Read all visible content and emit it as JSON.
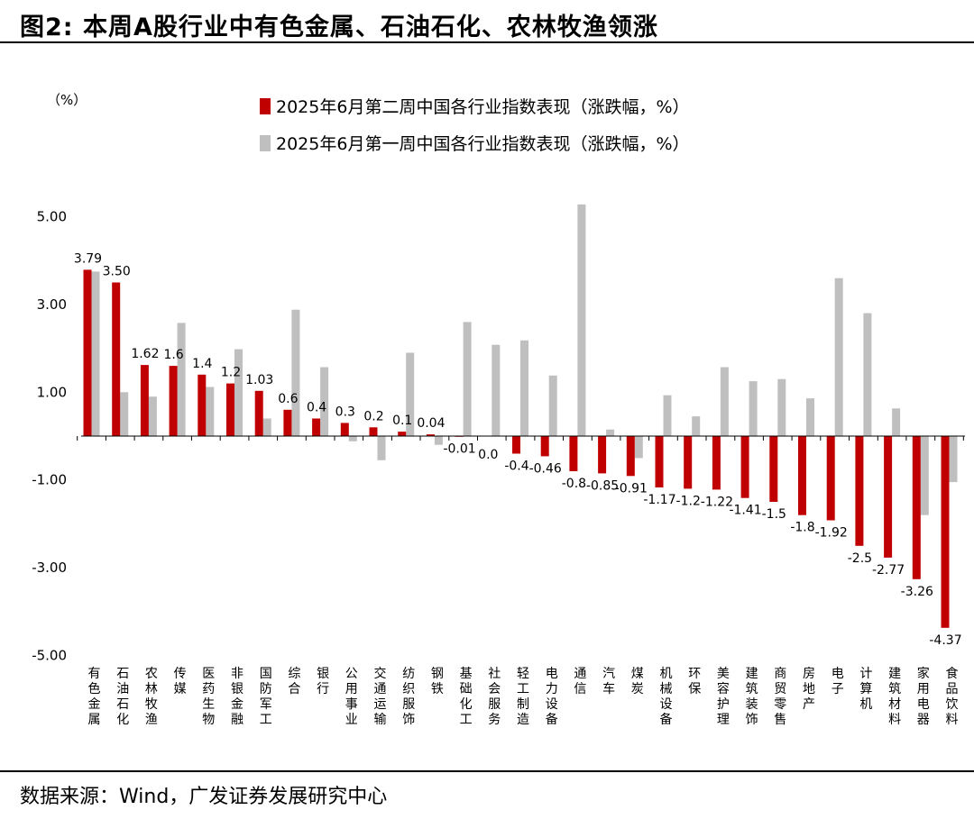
{
  "title": "图2:  本周A股行业中有色金属、石油石化、农林牧渔领涨",
  "source": "数据来源：Wind，广发证券发展研究中心",
  "colors": {
    "series1": "#c00000",
    "series2": "#bfbfbf",
    "axis": "#000000"
  },
  "chart_data": {
    "type": "bar",
    "title": "",
    "ylabel": "（%）",
    "xlabel": "",
    "ylim": [
      -5,
      5.5
    ],
    "yticks": [
      5.0,
      3.0,
      1.0,
      -1.0,
      -3.0,
      -5.0
    ],
    "ytick_labels": [
      "5.00",
      "3.00",
      "1.00",
      "-1.00",
      "-3.00",
      "-5.00"
    ],
    "legend_position": "top-center",
    "categories": [
      "有色金属",
      "石油石化",
      "农林牧渔",
      "传媒",
      "医药生物",
      "非银金融",
      "国防军工",
      "综合",
      "银行",
      "公用事业",
      "交通运输",
      "纺织服饰",
      "钢铁",
      "基础化工",
      "社会服务",
      "轻工制造",
      "电力设备",
      "通信",
      "汽车",
      "煤炭",
      "机械设备",
      "环保",
      "美容护理",
      "建筑装饰",
      "商贸零售",
      "房地产",
      "电子",
      "计算机",
      "建筑材料",
      "家用电器",
      "食品饮料"
    ],
    "series": [
      {
        "name": "2025年6月第二周中国各行业指数表现（涨跌幅，%）",
        "values": [
          3.79,
          3.5,
          1.62,
          1.6,
          1.4,
          1.2,
          1.03,
          0.6,
          0.4,
          0.3,
          0.2,
          0.1,
          0.04,
          -0.01,
          0.0,
          -0.4,
          -0.46,
          -0.8,
          -0.85,
          -0.91,
          -1.17,
          -1.2,
          -1.22,
          -1.41,
          -1.5,
          -1.8,
          -1.92,
          -2.5,
          -2.77,
          -3.26,
          -4.37
        ],
        "labels": [
          "3.79",
          "3.50",
          "1.62",
          "1.6",
          "1.4",
          "1.2",
          "1.03",
          "0.6",
          "0.4",
          "0.3",
          "0.2",
          "0.1",
          "0.04",
          "-0.01",
          "0.0",
          "-0.4",
          "-0.46",
          "-0.8",
          "-0.85",
          "-0.91",
          "-1.17",
          "-1.2",
          "-1.22",
          "-1.41",
          "-1.5",
          "-1.8",
          "-1.92",
          "-2.5",
          "-2.77",
          "-3.26",
          "-4.37"
        ]
      },
      {
        "name": "2025年6月第一周中国各行业指数表现（涨跌幅，%）",
        "values": [
          3.75,
          1.0,
          0.9,
          2.58,
          1.12,
          1.98,
          0.4,
          2.88,
          1.57,
          -0.12,
          -0.55,
          1.9,
          -0.2,
          2.6,
          2.08,
          2.18,
          1.38,
          5.28,
          0.15,
          -0.5,
          0.93,
          0.45,
          1.57,
          1.25,
          1.3,
          0.86,
          3.6,
          2.8,
          0.63,
          -1.8,
          -1.05
        ]
      }
    ]
  }
}
